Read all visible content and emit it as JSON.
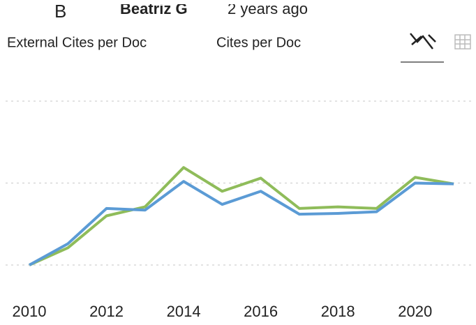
{
  "header": {
    "initial": "B",
    "author": "Beatriz G",
    "time": "2 years ago"
  },
  "chart_data": {
    "type": "line",
    "x": [
      2010,
      2011,
      2012,
      2013,
      2014,
      2015,
      2016,
      2017,
      2018,
      2019,
      2020,
      2021
    ],
    "series": [
      {
        "name": "External Cites per Doc",
        "color": "#5b9bd5",
        "values": [
          0,
          0.26,
          0.69,
          0.67,
          1.02,
          0.74,
          0.9,
          0.62,
          0.63,
          0.65,
          1.0,
          0.99
        ]
      },
      {
        "name": "Cites per Doc",
        "color": "#8fbc5a",
        "values": [
          0,
          0.21,
          0.6,
          0.71,
          1.19,
          0.9,
          1.06,
          0.69,
          0.71,
          0.69,
          1.07,
          0.99
        ]
      }
    ],
    "xlim": [
      2010,
      2021
    ],
    "xticks": [
      2010,
      2012,
      2014,
      2016,
      2018,
      2020
    ],
    "ylim": [
      0,
      2
    ],
    "yticks": [
      0,
      1,
      2
    ],
    "grid": true
  }
}
